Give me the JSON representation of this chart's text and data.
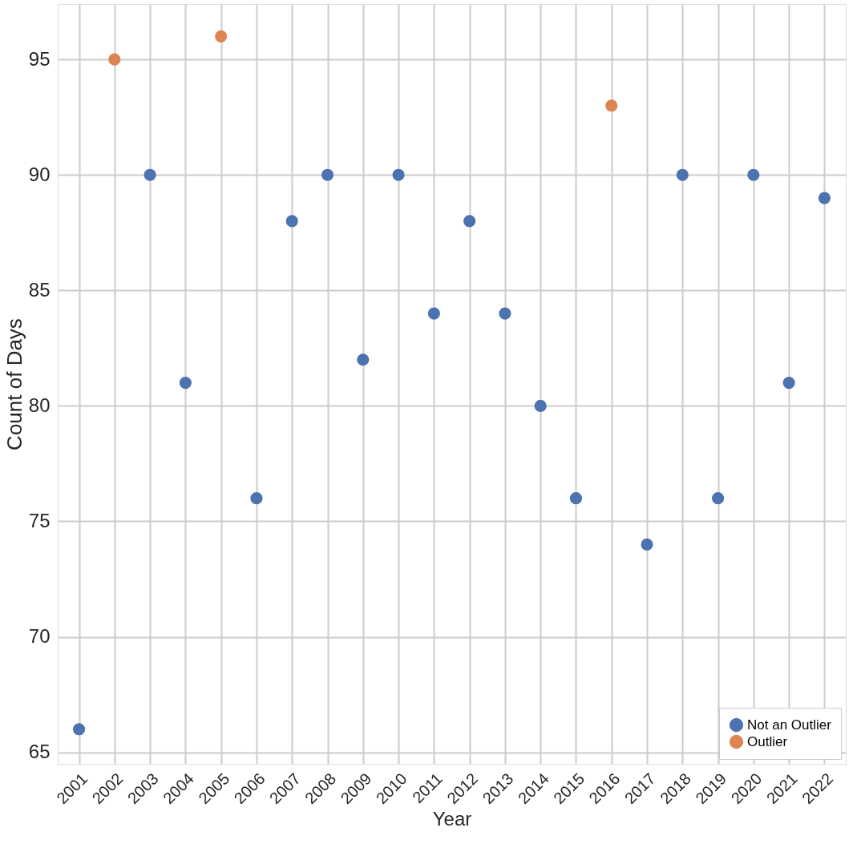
{
  "chart_data": {
    "type": "scatter",
    "xlabel": "Year",
    "ylabel": "Count of Days",
    "categories": [
      "2001",
      "2002",
      "2003",
      "2004",
      "2005",
      "2006",
      "2007",
      "2008",
      "2009",
      "2010",
      "2011",
      "2012",
      "2013",
      "2014",
      "2015",
      "2016",
      "2017",
      "2018",
      "2019",
      "2020",
      "2021",
      "2022"
    ],
    "series": [
      {
        "name": "Not an Outlier",
        "color": "#4c72b0",
        "values": [
          66,
          null,
          90,
          81,
          null,
          76,
          88,
          90,
          82,
          90,
          84,
          88,
          84,
          80,
          76,
          null,
          74,
          90,
          76,
          90,
          81,
          89
        ]
      },
      {
        "name": "Outlier",
        "color": "#dd8452",
        "values": [
          null,
          95,
          null,
          null,
          96,
          null,
          null,
          null,
          null,
          null,
          null,
          null,
          null,
          null,
          null,
          93,
          null,
          null,
          null,
          null,
          null,
          null
        ]
      }
    ],
    "ylim": [
      64.5,
      97.4
    ],
    "yticks": [
      65,
      70,
      75,
      80,
      85,
      90,
      95
    ],
    "grid": true,
    "legend": "bottom right",
    "marker": "circle"
  }
}
